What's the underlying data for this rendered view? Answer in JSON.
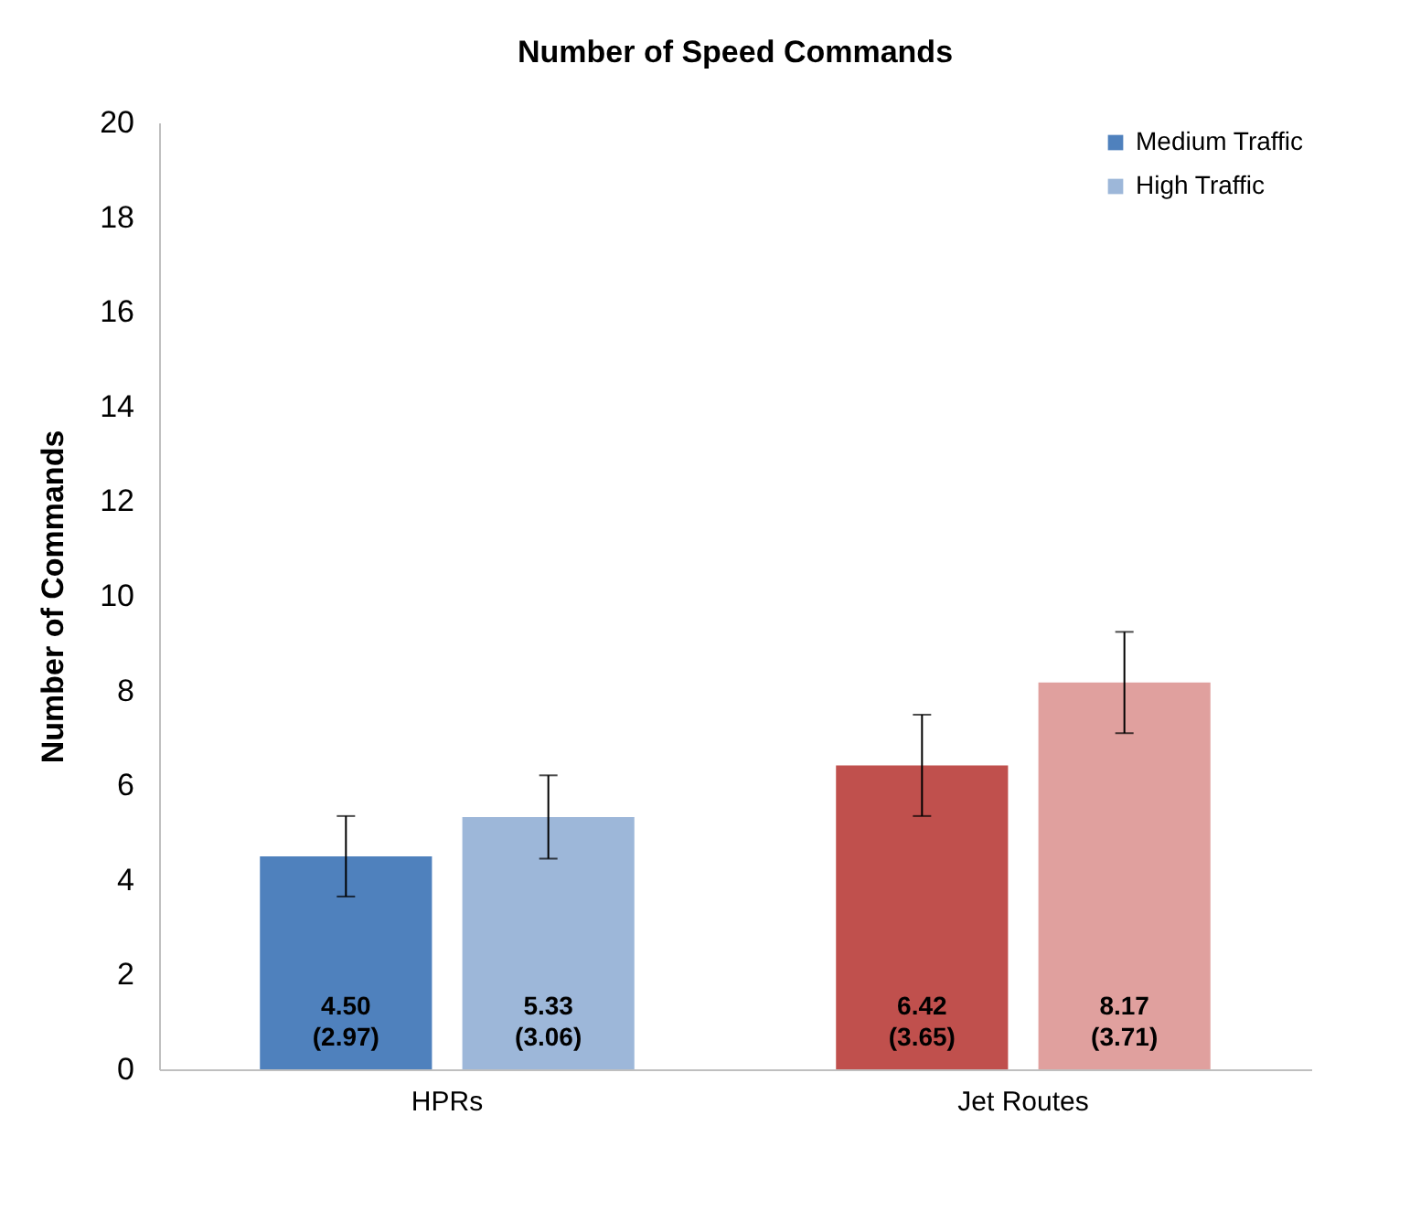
{
  "chart_data": {
    "type": "bar",
    "title": "Number of Speed Commands",
    "ylabel": "Number of Commands",
    "categories": [
      "HPRs",
      "Jet Routes"
    ],
    "series": [
      {
        "name": "Medium Traffic",
        "color": "#4f81bd",
        "colors": [
          "#4f81bd",
          "#c0504d"
        ],
        "values": [
          4.5,
          6.42
        ],
        "errors": [
          0.85,
          1.07
        ],
        "value_labels": [
          "4.50 (2.97)",
          "6.42 (3.65)"
        ]
      },
      {
        "name": "High Traffic",
        "color": "#9db7d9",
        "colors": [
          "#9db7d9",
          "#e0a09e"
        ],
        "values": [
          5.33,
          8.17
        ],
        "errors": [
          0.88,
          1.07
        ],
        "value_labels": [
          "5.33 (3.06)",
          "8.17 (3.71)"
        ]
      }
    ],
    "ylim": [
      0,
      20
    ],
    "yticks": [
      0,
      2,
      4,
      6,
      8,
      10,
      12,
      14,
      16,
      18,
      20
    ],
    "grid": false,
    "legend": "top right"
  }
}
